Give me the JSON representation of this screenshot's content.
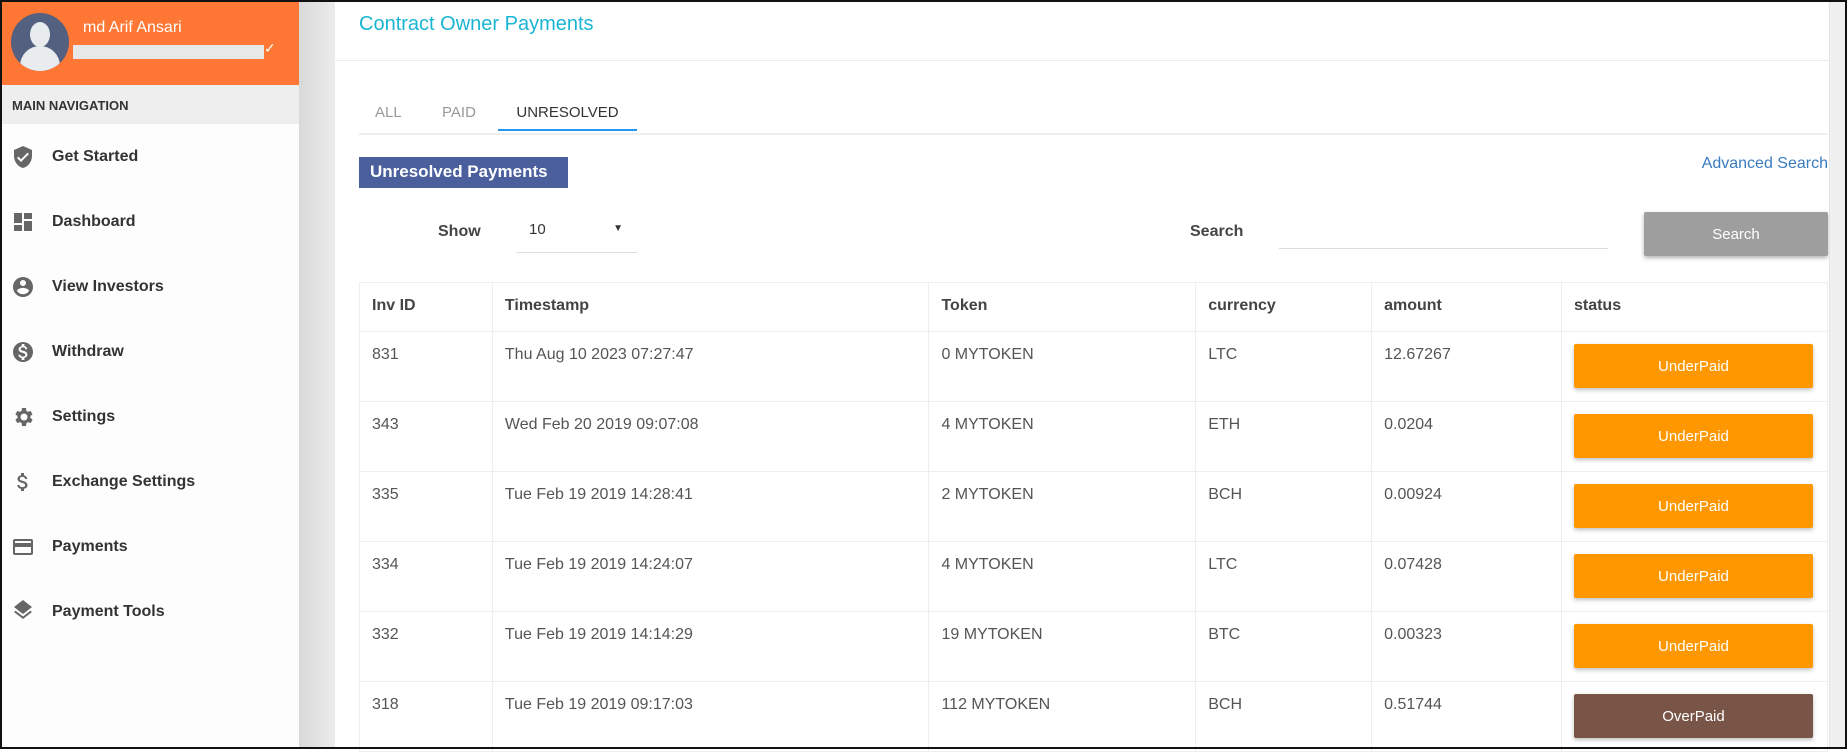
{
  "user": {
    "name": "md Arif Ansari"
  },
  "sidebar": {
    "heading": "MAIN NAVIGATION",
    "items": [
      {
        "label": "Get Started",
        "icon": "shield-check-icon"
      },
      {
        "label": "Dashboard",
        "icon": "dashboard-icon"
      },
      {
        "label": "View Investors",
        "icon": "account-circle-icon"
      },
      {
        "label": "Withdraw",
        "icon": "dollar-circle-icon"
      },
      {
        "label": "Settings",
        "icon": "gear-icon"
      },
      {
        "label": "Exchange Settings",
        "icon": "dollar-icon"
      },
      {
        "label": "Payments",
        "icon": "credit-card-icon"
      },
      {
        "label": "Payment Tools",
        "icon": "layers-icon"
      }
    ]
  },
  "page": {
    "title": "Contract Owner Payments",
    "tabs": [
      {
        "label": "ALL"
      },
      {
        "label": "PAID"
      },
      {
        "label": "UNRESOLVED",
        "active": true
      }
    ],
    "section_title": "Unresolved Payments",
    "advanced_search": "Advanced Search",
    "show_label": "Show",
    "show_value": "10",
    "search_label": "Search",
    "search_value": "",
    "search_button": "Search"
  },
  "colors": {
    "accent": "#ff7734",
    "underpaid": "#ff9800",
    "overpaid": "#795548",
    "badge": "#4a5f9c"
  },
  "table": {
    "columns": [
      "Inv ID",
      "Timestamp",
      "Token",
      "currency",
      "amount",
      "status"
    ],
    "rows": [
      [
        "831",
        "Thu Aug 10 2023 07:27:47",
        "0 MYTOKEN",
        "LTC",
        "12.67267",
        "UnderPaid"
      ],
      [
        "343",
        "Wed Feb 20 2019 09:07:08",
        "4 MYTOKEN",
        "ETH",
        "0.0204",
        "UnderPaid"
      ],
      [
        "335",
        "Tue Feb 19 2019 14:28:41",
        "2 MYTOKEN",
        "BCH",
        "0.00924",
        "UnderPaid"
      ],
      [
        "334",
        "Tue Feb 19 2019 14:24:07",
        "4 MYTOKEN",
        "LTC",
        "0.07428",
        "UnderPaid"
      ],
      [
        "332",
        "Tue Feb 19 2019 14:14:29",
        "19 MYTOKEN",
        "BTC",
        "0.00323",
        "UnderPaid"
      ],
      [
        "318",
        "Tue Feb 19 2019 09:17:03",
        "112 MYTOKEN",
        "BCH",
        "0.51744",
        "OverPaid"
      ]
    ]
  }
}
